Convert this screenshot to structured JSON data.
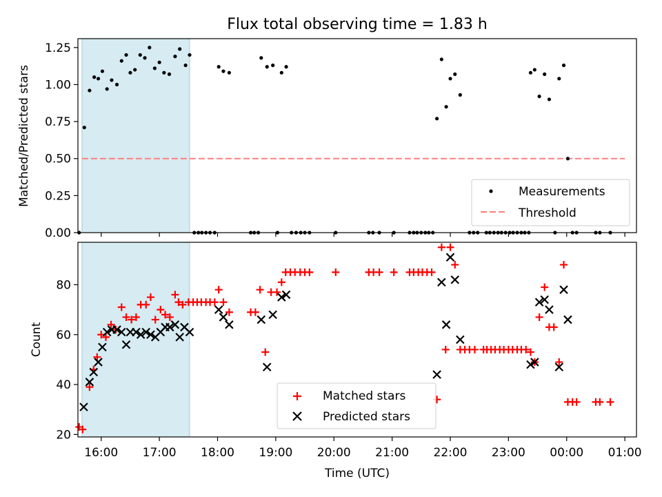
{
  "chart_data": [
    {
      "type": "scatter",
      "title": "Flux total observing time = 1.83 h",
      "xlabel": "",
      "ylabel": "Matched/Predicted stars",
      "xlim": [
        15.6,
        25.2
      ],
      "ylim": [
        0,
        1.31
      ],
      "yticks": [
        0,
        0.25,
        0.5,
        0.75,
        1.0,
        1.25
      ],
      "ytick_labels": [
        "0.00",
        "0.25",
        "0.50",
        "0.75",
        "1.00",
        "1.25"
      ],
      "shaded_span": [
        15.67,
        17.52
      ],
      "legend": [
        "Measurements",
        "Threshold"
      ],
      "legend_position": "lower right",
      "series": [
        {
          "name": "Measurements",
          "marker": "dot",
          "color": "#000000",
          "points": [
            [
              15.62,
              0.0
            ],
            [
              15.71,
              0.71
            ],
            [
              15.8,
              0.96
            ],
            [
              15.88,
              1.05
            ],
            [
              15.95,
              1.04
            ],
            [
              16.02,
              1.09
            ],
            [
              16.1,
              0.97
            ],
            [
              16.18,
              1.03
            ],
            [
              16.27,
              1.0
            ],
            [
              16.35,
              1.16
            ],
            [
              16.43,
              1.2
            ],
            [
              16.5,
              1.08
            ],
            [
              16.58,
              1.1
            ],
            [
              16.67,
              1.2
            ],
            [
              16.75,
              1.18
            ],
            [
              16.83,
              1.25
            ],
            [
              16.92,
              1.11
            ],
            [
              17.0,
              1.15
            ],
            [
              17.08,
              1.08
            ],
            [
              17.17,
              1.07
            ],
            [
              17.27,
              1.19
            ],
            [
              17.35,
              1.24
            ],
            [
              17.45,
              1.13
            ],
            [
              17.52,
              1.2
            ],
            [
              17.6,
              0.0
            ],
            [
              17.67,
              0.0
            ],
            [
              17.73,
              0.0
            ],
            [
              17.8,
              0.0
            ],
            [
              17.87,
              0.0
            ],
            [
              17.95,
              0.0
            ],
            [
              18.02,
              1.12
            ],
            [
              18.1,
              1.09
            ],
            [
              18.2,
              1.08
            ],
            [
              18.57,
              0.0
            ],
            [
              18.63,
              0.0
            ],
            [
              18.7,
              0.0
            ],
            [
              18.75,
              1.18
            ],
            [
              18.85,
              1.12
            ],
            [
              18.95,
              1.13
            ],
            [
              19.03,
              0.0
            ],
            [
              19.1,
              1.08
            ],
            [
              19.18,
              1.12
            ],
            [
              19.27,
              0.0
            ],
            [
              19.35,
              0.0
            ],
            [
              19.43,
              0.0
            ],
            [
              19.5,
              0.0
            ],
            [
              19.58,
              0.0
            ],
            [
              20.03,
              0.0
            ],
            [
              20.6,
              0.0
            ],
            [
              20.67,
              0.0
            ],
            [
              20.78,
              0.0
            ],
            [
              21.03,
              0.0
            ],
            [
              21.3,
              0.0
            ],
            [
              21.37,
              0.0
            ],
            [
              21.43,
              0.0
            ],
            [
              21.5,
              0.0
            ],
            [
              21.57,
              0.0
            ],
            [
              21.63,
              0.0
            ],
            [
              21.7,
              0.0
            ],
            [
              21.77,
              0.77
            ],
            [
              21.85,
              1.17
            ],
            [
              21.93,
              0.85
            ],
            [
              22.0,
              1.04
            ],
            [
              22.08,
              1.07
            ],
            [
              22.17,
              0.93
            ],
            [
              22.33,
              0.0
            ],
            [
              22.4,
              0.0
            ],
            [
              22.47,
              0.0
            ],
            [
              22.62,
              0.0
            ],
            [
              22.68,
              0.0
            ],
            [
              22.75,
              0.0
            ],
            [
              22.82,
              0.0
            ],
            [
              22.88,
              0.0
            ],
            [
              22.95,
              0.0
            ],
            [
              23.02,
              0.0
            ],
            [
              23.08,
              0.0
            ],
            [
              23.15,
              0.0
            ],
            [
              23.22,
              0.0
            ],
            [
              23.28,
              0.0
            ],
            [
              23.35,
              0.0
            ],
            [
              23.38,
              1.08
            ],
            [
              23.45,
              1.1
            ],
            [
              23.53,
              0.92
            ],
            [
              23.62,
              1.07
            ],
            [
              23.7,
              0.9
            ],
            [
              23.8,
              0.0
            ],
            [
              23.87,
              1.04
            ],
            [
              23.95,
              1.13
            ],
            [
              24.02,
              0.5
            ],
            [
              24.1,
              0.0
            ],
            [
              24.17,
              0.0
            ],
            [
              24.5,
              0.0
            ],
            [
              24.57,
              0.0
            ],
            [
              24.75,
              0.0
            ]
          ]
        },
        {
          "name": "Threshold",
          "style": "dashed",
          "color": "#ff7f7f",
          "x": [
            15.67,
            25.0
          ],
          "y": [
            0.5,
            0.5
          ]
        }
      ]
    },
    {
      "type": "scatter",
      "title": "",
      "xlabel": "Time (UTC)",
      "ylabel": "Count",
      "xlim": [
        15.6,
        25.2
      ],
      "ylim": [
        19,
        97
      ],
      "yticks": [
        20,
        40,
        60,
        80
      ],
      "ytick_labels": [
        "20",
        "40",
        "60",
        "80"
      ],
      "xticks": [
        16,
        17,
        18,
        19,
        20,
        21,
        22,
        23,
        24,
        25
      ],
      "xtick_labels": [
        "16:00",
        "17:00",
        "18:00",
        "19:00",
        "20:00",
        "21:00",
        "22:00",
        "23:00",
        "00:00",
        "01:00"
      ],
      "shaded_span": [
        15.67,
        17.52
      ],
      "legend": [
        "Matched stars",
        "Predicted stars"
      ],
      "legend_position": "lower center",
      "series": [
        {
          "name": "Matched stars",
          "marker": "plus",
          "color": "#ff0000",
          "points": [
            [
              15.62,
              23
            ],
            [
              15.68,
              22
            ],
            [
              15.8,
              39
            ],
            [
              15.87,
              46
            ],
            [
              15.93,
              51
            ],
            [
              16.0,
              60
            ],
            [
              16.08,
              59
            ],
            [
              16.17,
              64
            ],
            [
              16.25,
              62
            ],
            [
              16.35,
              71
            ],
            [
              16.43,
              67
            ],
            [
              16.52,
              66
            ],
            [
              16.6,
              67
            ],
            [
              16.68,
              72
            ],
            [
              16.77,
              72
            ],
            [
              16.85,
              75
            ],
            [
              16.93,
              66
            ],
            [
              17.02,
              70
            ],
            [
              17.1,
              68
            ],
            [
              17.18,
              67
            ],
            [
              17.27,
              76
            ],
            [
              17.33,
              73
            ],
            [
              17.4,
              72
            ],
            [
              17.5,
              73
            ],
            [
              17.58,
              73
            ],
            [
              17.65,
              73
            ],
            [
              17.72,
              73
            ],
            [
              17.8,
              73
            ],
            [
              17.87,
              73
            ],
            [
              17.95,
              73
            ],
            [
              18.02,
              78
            ],
            [
              18.1,
              73
            ],
            [
              18.2,
              69
            ],
            [
              18.57,
              69
            ],
            [
              18.65,
              69
            ],
            [
              18.73,
              78
            ],
            [
              18.82,
              53
            ],
            [
              18.92,
              77
            ],
            [
              19.02,
              77
            ],
            [
              19.1,
              81
            ],
            [
              19.17,
              85
            ],
            [
              19.25,
              85
            ],
            [
              19.33,
              85
            ],
            [
              19.42,
              85
            ],
            [
              19.5,
              85
            ],
            [
              19.58,
              85
            ],
            [
              20.03,
              85
            ],
            [
              20.6,
              85
            ],
            [
              20.68,
              85
            ],
            [
              20.78,
              85
            ],
            [
              21.03,
              85
            ],
            [
              21.3,
              85
            ],
            [
              21.37,
              85
            ],
            [
              21.45,
              85
            ],
            [
              21.52,
              85
            ],
            [
              21.6,
              85
            ],
            [
              21.68,
              85
            ],
            [
              21.77,
              34
            ],
            [
              21.85,
              95
            ],
            [
              21.92,
              54
            ],
            [
              22.0,
              95
            ],
            [
              22.08,
              88
            ],
            [
              22.17,
              54
            ],
            [
              22.25,
              54
            ],
            [
              22.33,
              54
            ],
            [
              22.42,
              54
            ],
            [
              22.57,
              54
            ],
            [
              22.63,
              54
            ],
            [
              22.7,
              54
            ],
            [
              22.77,
              54
            ],
            [
              22.85,
              54
            ],
            [
              22.92,
              54
            ],
            [
              23.0,
              54
            ],
            [
              23.07,
              54
            ],
            [
              23.15,
              54
            ],
            [
              23.22,
              54
            ],
            [
              23.3,
              54
            ],
            [
              23.38,
              53
            ],
            [
              23.45,
              49
            ],
            [
              23.53,
              67
            ],
            [
              23.62,
              79
            ],
            [
              23.7,
              63
            ],
            [
              23.78,
              63
            ],
            [
              23.87,
              49
            ],
            [
              23.95,
              88
            ],
            [
              24.02,
              33
            ],
            [
              24.1,
              33
            ],
            [
              24.17,
              33
            ],
            [
              24.5,
              33
            ],
            [
              24.57,
              33
            ],
            [
              24.75,
              33
            ]
          ]
        },
        {
          "name": "Predicted stars",
          "marker": "x",
          "color": "#000000",
          "points": [
            [
              15.7,
              31
            ],
            [
              15.8,
              41
            ],
            [
              15.87,
              45
            ],
            [
              15.95,
              49
            ],
            [
              16.02,
              55
            ],
            [
              16.1,
              61
            ],
            [
              16.18,
              62
            ],
            [
              16.27,
              62
            ],
            [
              16.35,
              61
            ],
            [
              16.43,
              56
            ],
            [
              16.5,
              61
            ],
            [
              16.6,
              61
            ],
            [
              16.68,
              60
            ],
            [
              16.77,
              61
            ],
            [
              16.85,
              60
            ],
            [
              16.93,
              59
            ],
            [
              17.02,
              61
            ],
            [
              17.1,
              63
            ],
            [
              17.18,
              63
            ],
            [
              17.27,
              64
            ],
            [
              17.35,
              59
            ],
            [
              17.43,
              63
            ],
            [
              17.52,
              61
            ],
            [
              18.02,
              70
            ],
            [
              18.1,
              67
            ],
            [
              18.2,
              64
            ],
            [
              18.75,
              66
            ],
            [
              18.85,
              47
            ],
            [
              18.95,
              68
            ],
            [
              19.1,
              75
            ],
            [
              19.18,
              76
            ],
            [
              21.77,
              44
            ],
            [
              21.85,
              81
            ],
            [
              21.93,
              64
            ],
            [
              22.0,
              91
            ],
            [
              22.08,
              82
            ],
            [
              22.17,
              58
            ],
            [
              23.38,
              48
            ],
            [
              23.45,
              49
            ],
            [
              23.53,
              73
            ],
            [
              23.62,
              74
            ],
            [
              23.7,
              70
            ],
            [
              23.87,
              47
            ],
            [
              23.95,
              78
            ],
            [
              24.02,
              66
            ]
          ]
        }
      ]
    }
  ]
}
